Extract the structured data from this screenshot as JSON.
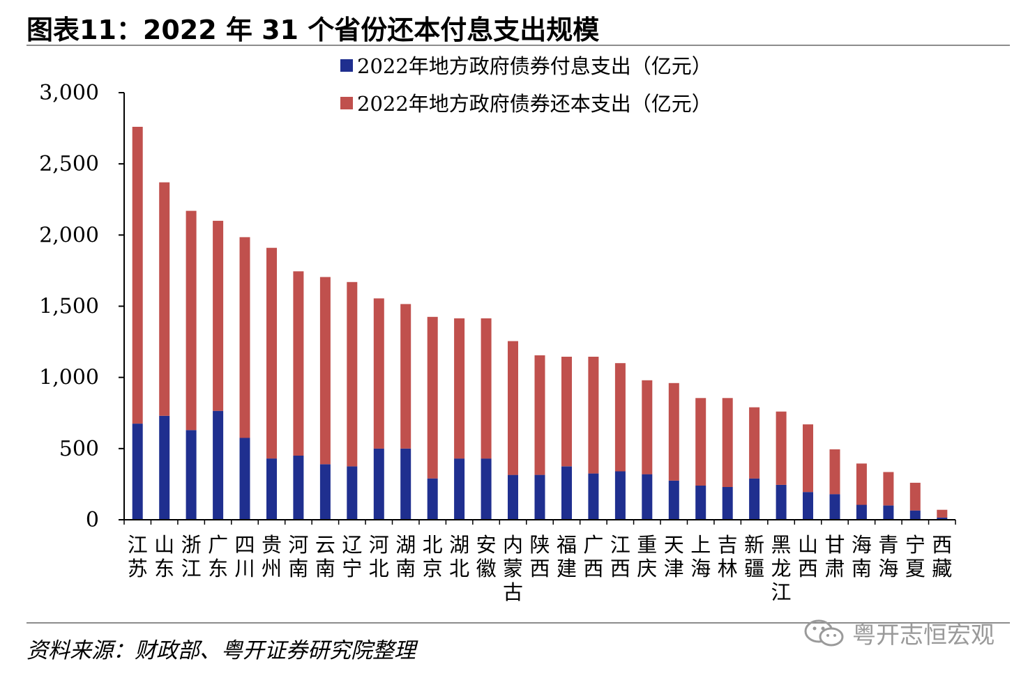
{
  "header": {
    "title": "图表11：2022 年 31 个省份还本付息支出规模"
  },
  "footer": {
    "source": "资料来源：财政部、粤开证券研究院整理",
    "watermark": "粤开志恒宏观"
  },
  "colors": {
    "interest": "#1f2f8f",
    "principal": "#c0504d",
    "axis": "#000000",
    "rule": "#8c8c8c"
  },
  "chart_data": {
    "type": "bar",
    "stacked": true,
    "title": "",
    "xlabel": "",
    "ylabel": "",
    "ylim": [
      0,
      3000
    ],
    "yticks": [
      0,
      500,
      1000,
      1500,
      2000,
      2500,
      3000
    ],
    "ytick_labels": [
      "0",
      "500",
      "1,000",
      "1,500",
      "2,000",
      "2,500",
      "3,000"
    ],
    "legend_position": "top-center",
    "categories": [
      "江苏",
      "山东",
      "浙江",
      "广东",
      "四川",
      "贵州",
      "河南",
      "云南",
      "辽宁",
      "河北",
      "湖南",
      "北京",
      "湖北",
      "安徽",
      "内蒙古",
      "陕西",
      "福建",
      "广西",
      "江西",
      "重庆",
      "天津",
      "上海",
      "吉林",
      "新疆",
      "黑龙江",
      "山西",
      "甘肃",
      "海南",
      "青海",
      "宁夏",
      "西藏"
    ],
    "series": [
      {
        "name": "2022年地方政府债券付息支出（亿元）",
        "color_key": "interest",
        "values": [
          675,
          730,
          630,
          765,
          575,
          430,
          450,
          390,
          375,
          500,
          500,
          290,
          430,
          430,
          315,
          315,
          375,
          325,
          340,
          320,
          275,
          240,
          230,
          290,
          245,
          195,
          180,
          105,
          100,
          65,
          15
        ]
      },
      {
        "name": "2022年地方政府债券还本支出（亿元）",
        "color_key": "principal",
        "values": [
          2085,
          1640,
          1540,
          1335,
          1410,
          1480,
          1295,
          1315,
          1295,
          1055,
          1015,
          1135,
          985,
          985,
          940,
          840,
          770,
          820,
          760,
          660,
          685,
          615,
          625,
          500,
          515,
          475,
          315,
          290,
          235,
          195,
          55
        ]
      }
    ]
  }
}
